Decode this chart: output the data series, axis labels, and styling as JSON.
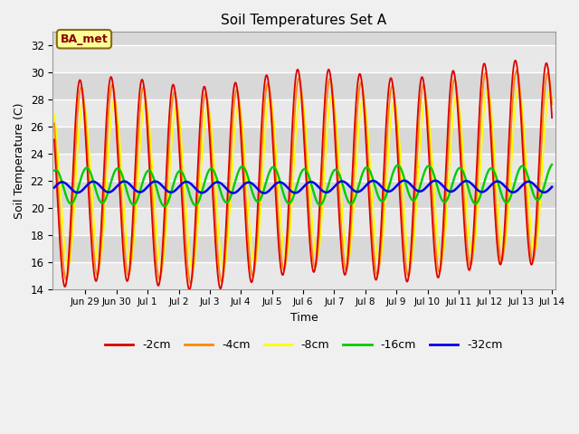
{
  "title": "Soil Temperatures Set A",
  "xlabel": "Time",
  "ylabel": "Soil Temperature (C)",
  "ylim": [
    14,
    33
  ],
  "yticks": [
    14,
    16,
    18,
    20,
    22,
    24,
    26,
    28,
    30,
    32
  ],
  "annotation": "BA_met",
  "colors": {
    "-2cm": "#dd0000",
    "-4cm": "#ff8800",
    "-8cm": "#ffff00",
    "-16cm": "#00cc00",
    "-32cm": "#0000ee"
  },
  "legend_labels": [
    "-2cm",
    "-4cm",
    "-8cm",
    "-16cm",
    "-32cm"
  ],
  "axes_facecolor": "#d8d8d8",
  "fig_facecolor": "#f0f0f0",
  "band_colors": [
    "#e8e8e8",
    "#d0d0d0"
  ],
  "grid_color": "#ffffff"
}
